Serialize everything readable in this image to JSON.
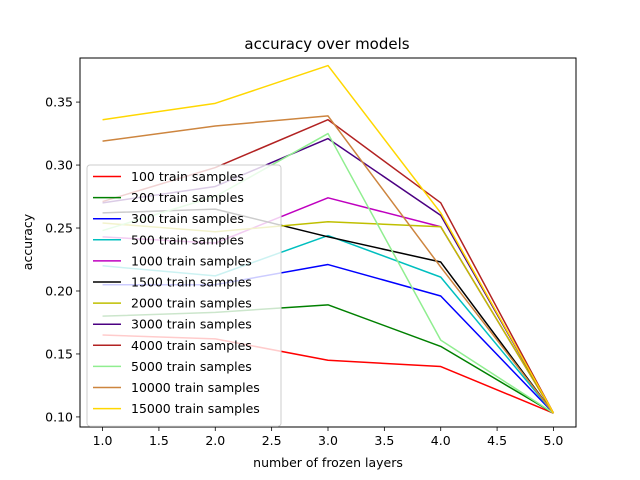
{
  "chart_data": {
    "type": "line",
    "title": "accuracy over models",
    "xlabel": "number of frozen layers",
    "ylabel": "accuracy",
    "xlim": [
      0.8,
      5.2
    ],
    "ylim": [
      0.092,
      0.385
    ],
    "x": [
      1,
      2,
      3,
      4,
      5
    ],
    "xticks": [
      1.0,
      1.5,
      2.0,
      2.5,
      3.0,
      3.5,
      4.0,
      4.5,
      5.0
    ],
    "xtick_labels": [
      "1.0",
      "1.5",
      "2.0",
      "2.5",
      "3.0",
      "3.5",
      "4.0",
      "4.5",
      "5.0"
    ],
    "yticks": [
      0.1,
      0.15,
      0.2,
      0.25,
      0.3,
      0.35
    ],
    "ytick_labels": [
      "0.10",
      "0.15",
      "0.20",
      "0.25",
      "0.30",
      "0.35"
    ],
    "grid": false,
    "legend_position": "lower-left",
    "series": [
      {
        "name": "100 train samples",
        "color": "#ff0000",
        "values": [
          0.165,
          0.162,
          0.145,
          0.14,
          0.103
        ]
      },
      {
        "name": "200 train samples",
        "color": "#008000",
        "values": [
          0.18,
          0.183,
          0.189,
          0.156,
          0.103
        ]
      },
      {
        "name": "300 train samples",
        "color": "#0000ff",
        "values": [
          0.205,
          0.205,
          0.221,
          0.196,
          0.103
        ]
      },
      {
        "name": "500 train samples",
        "color": "#00bfbf",
        "values": [
          0.22,
          0.212,
          0.244,
          0.211,
          0.103
        ]
      },
      {
        "name": "1000 train samples",
        "color": "#bf00bf",
        "values": [
          0.243,
          0.238,
          0.274,
          0.251,
          0.103
        ]
      },
      {
        "name": "1500 train samples",
        "color": "#000000",
        "values": [
          0.262,
          0.265,
          0.243,
          0.223,
          0.103
        ]
      },
      {
        "name": "2000 train samples",
        "color": "#bfbf00",
        "values": [
          0.254,
          0.247,
          0.255,
          0.251,
          0.103
        ]
      },
      {
        "name": "3000 train samples",
        "color": "#4b0082",
        "values": [
          0.27,
          0.283,
          0.321,
          0.26,
          0.103
        ]
      },
      {
        "name": "4000 train samples",
        "color": "#b22222",
        "values": [
          0.271,
          0.298,
          0.336,
          0.27,
          0.103
        ]
      },
      {
        "name": "5000 train samples",
        "color": "#90ee90",
        "values": [
          0.248,
          0.275,
          0.325,
          0.161,
          0.103
        ]
      },
      {
        "name": "10000 train samples",
        "color": "#cd853f",
        "values": [
          0.319,
          0.331,
          0.339,
          0.219,
          0.103
        ]
      },
      {
        "name": "15000 train samples",
        "color": "#ffd700",
        "values": [
          0.336,
          0.349,
          0.379,
          0.262,
          0.103
        ]
      }
    ]
  }
}
